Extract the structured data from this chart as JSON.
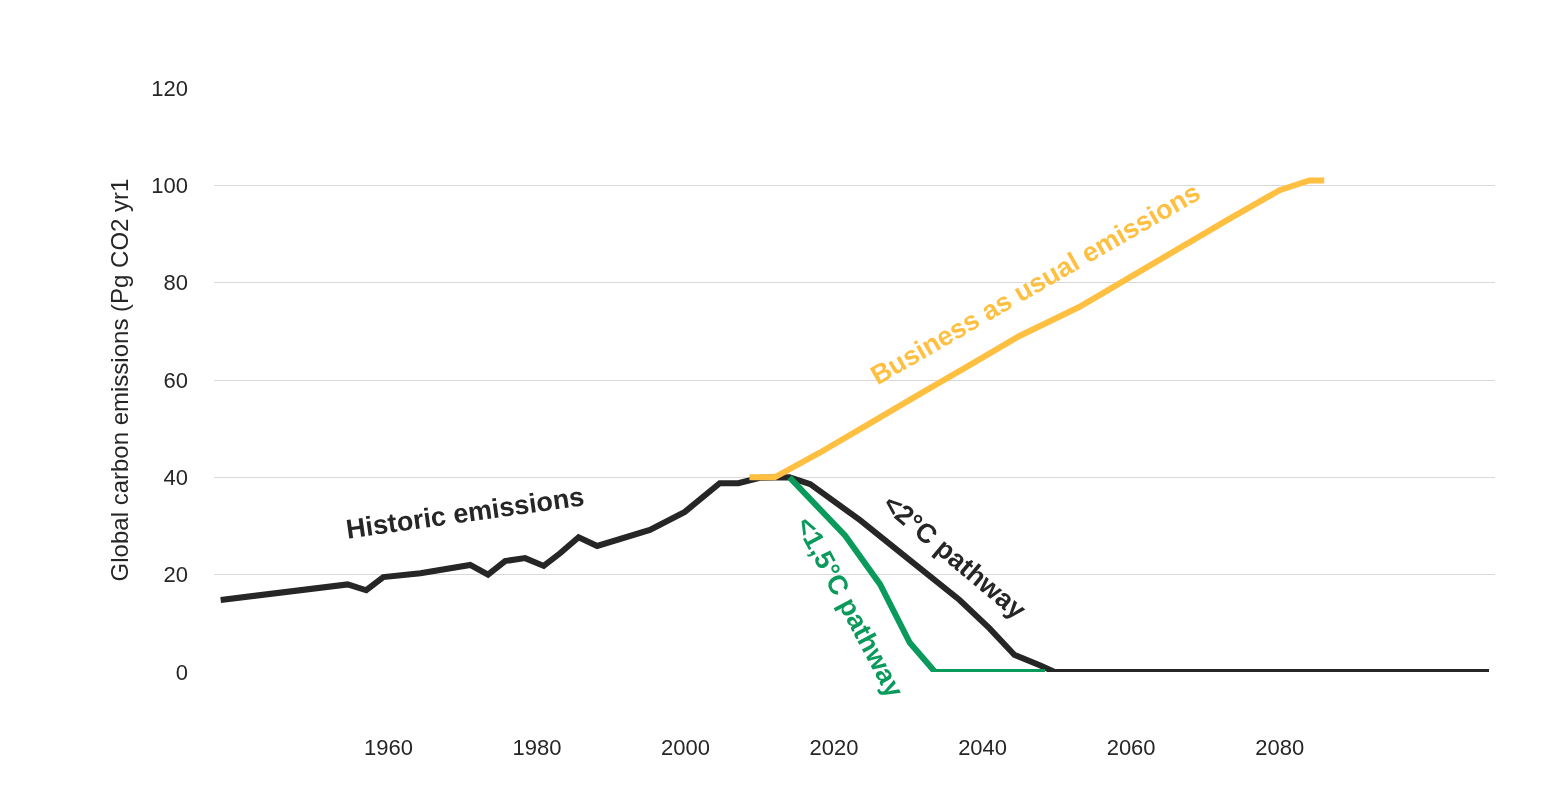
{
  "chart_data": {
    "type": "line",
    "ylabel": "Global carbon emissions (Pg CO2 yr1",
    "xlim": [
      1936.5,
      2109
    ],
    "xticks": [
      1960,
      1980,
      2000,
      2020,
      2040,
      2060,
      2080
    ],
    "ylim": [
      0,
      120
    ],
    "yticks": [
      0,
      20,
      40,
      60,
      80,
      100,
      120
    ],
    "grid": "y",
    "legend": false,
    "marker": "none",
    "line_style": "solid",
    "annotations": [
      {
        "text": "<2°C pathway",
        "x": 2036.9,
        "y": 14.8
      }
    ],
    "series": [
      {
        "name": "Historic emissions",
        "color": "#262626",
        "x": [
          1937.4,
          1954.5,
          1957,
          1959.3,
          1964.3,
          1971,
          1973.4,
          1975.7,
          1978.4,
          1980.9,
          1983.1,
          1985.6,
          1988.1,
          1995.2,
          1999.9,
          2004.6,
          2007.1,
          2010,
          2014,
          2016.8,
          2023.5,
          2030.2,
          2036.9,
          2040.9,
          2044.3,
          2047.7,
          2049.7,
          2108.2
        ],
        "values": [
          14.8,
          18,
          16.8,
          19.5,
          20.3,
          22,
          20,
          22.8,
          23.4,
          21.8,
          24.4,
          27.7,
          25.9,
          29.2,
          32.9,
          38.8,
          38.8,
          39.9,
          40,
          38.6,
          31.2,
          23,
          14.8,
          9,
          3.5,
          1.4,
          0,
          0
        ]
      },
      {
        "name": "<1,5°C pathway",
        "color": "#0a9a5c",
        "x": [
          2014,
          2021.5,
          2026.2,
          2030.2,
          2033.6,
          2048.4
        ],
        "values": [
          40,
          28,
          18,
          6,
          0,
          0
        ]
      },
      {
        "name": "Business as usual emissions",
        "color": "#ffbf40",
        "x": [
          2008.6,
          2012,
          2018,
          2024.7,
          2031.4,
          2038.2,
          2044.9,
          2053,
          2059.7,
          2066.4,
          2073.1,
          2080,
          2084,
          2086
        ],
        "values": [
          40,
          40,
          45,
          51,
          57,
          63,
          69,
          75,
          81,
          87,
          93,
          99,
          101,
          101
        ]
      }
    ]
  }
}
